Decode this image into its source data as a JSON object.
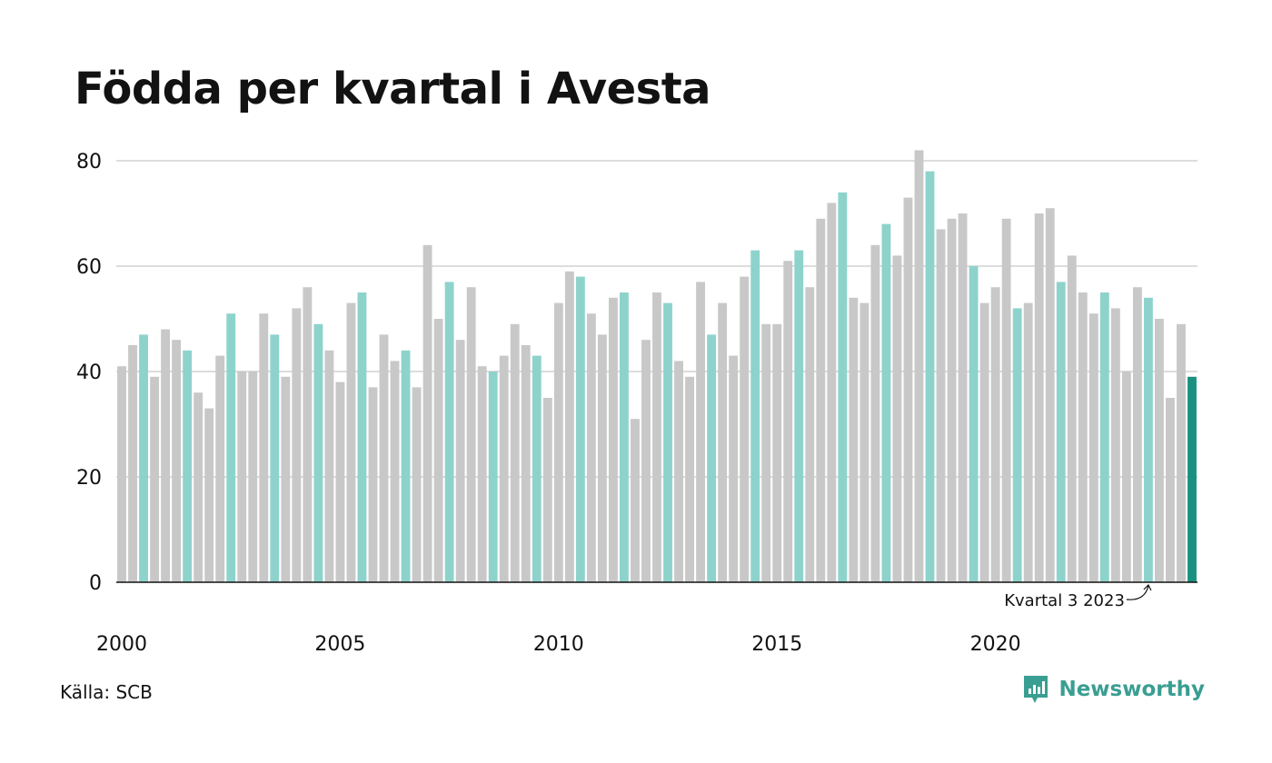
{
  "chart_data": {
    "type": "bar",
    "title": "Födda per kvartal i Avesta",
    "ylim": [
      0,
      82
    ],
    "yticks": [
      0,
      20,
      40,
      60,
      80
    ],
    "grid": true,
    "xtick_labels": [
      "2000",
      "2005",
      "2010",
      "2015",
      "2020"
    ],
    "categories": [
      "2000 K1",
      "2000 K2",
      "2000 K3",
      "2000 K4",
      "2001 K1",
      "2001 K2",
      "2001 K3",
      "2001 K4",
      "2002 K1",
      "2002 K2",
      "2002 K3",
      "2002 K4",
      "2003 K1",
      "2003 K2",
      "2003 K3",
      "2003 K4",
      "2004 K1",
      "2004 K2",
      "2004 K3",
      "2004 K4",
      "2005 K1",
      "2005 K2",
      "2005 K3",
      "2005 K4",
      "2006 K1",
      "2006 K2",
      "2006 K3",
      "2006 K4",
      "2007 K1",
      "2007 K2",
      "2007 K3",
      "2007 K4",
      "2008 K1",
      "2008 K2",
      "2008 K3",
      "2008 K4",
      "2009 K1",
      "2009 K2",
      "2009 K3",
      "2009 K4",
      "2010 K1",
      "2010 K2",
      "2010 K3",
      "2010 K4",
      "2011 K1",
      "2011 K2",
      "2011 K3",
      "2011 K4",
      "2012 K1",
      "2012 K2",
      "2012 K3",
      "2012 K4",
      "2013 K1",
      "2013 K2",
      "2013 K3",
      "2013 K4",
      "2014 K1",
      "2014 K2",
      "2014 K3",
      "2014 K4",
      "2015 K1",
      "2015 K2",
      "2015 K3",
      "2015 K4",
      "2016 K1",
      "2016 K2",
      "2016 K3",
      "2016 K4",
      "2017 K1",
      "2017 K2",
      "2017 K3",
      "2017 K4",
      "2018 K1",
      "2018 K2",
      "2018 K3",
      "2018 K4",
      "2019 K1",
      "2019 K2",
      "2019 K3",
      "2019 K4",
      "2020 K1",
      "2020 K2",
      "2020 K3",
      "2020 K4",
      "2021 K1",
      "2021 K2",
      "2021 K3",
      "2021 K4",
      "2022 K1",
      "2022 K2",
      "2022 K3",
      "2022 K4",
      "2023 K1",
      "2023 K2",
      "2023 K3",
      "2023 K4",
      "2024 K1",
      "2024 K2",
      "2024 K3"
    ],
    "values": [
      41,
      45,
      47,
      39,
      48,
      46,
      44,
      36,
      33,
      43,
      51,
      40,
      40,
      51,
      47,
      39,
      52,
      56,
      49,
      44,
      38,
      53,
      55,
      37,
      47,
      42,
      44,
      37,
      64,
      50,
      57,
      46,
      56,
      41,
      40,
      43,
      49,
      45,
      43,
      35,
      53,
      59,
      58,
      51,
      47,
      54,
      55,
      31,
      46,
      55,
      53,
      42,
      39,
      57,
      47,
      53,
      43,
      58,
      63,
      49,
      49,
      61,
      63,
      56,
      69,
      72,
      74,
      54,
      53,
      64,
      68,
      62,
      73,
      82,
      78,
      67,
      69,
      70,
      60,
      53,
      56,
      69,
      52,
      53,
      70,
      71,
      57,
      62,
      55,
      51,
      55,
      52,
      40,
      56,
      54,
      50,
      35,
      49,
      39
    ],
    "highlight_quarter": 3,
    "annotation": "Kvartal 3 2023",
    "colors": {
      "default": "#c8c8c8",
      "same_quarter": "#8dd3cc",
      "latest": "#1a9080",
      "grid": "#dddddd",
      "axis": "#121212"
    }
  },
  "footer": {
    "source": "Källa: SCB",
    "brand": "Newsworthy"
  },
  "brand_color": "#3a9e92",
  "brand_icon": "newsworthy-logo-icon"
}
